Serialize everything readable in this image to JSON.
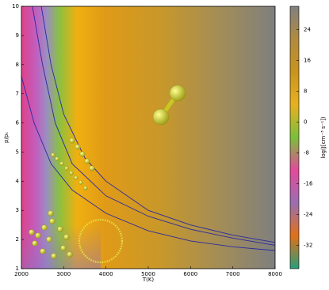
{
  "chart_data": {
    "type": "line",
    "xlabel": "T(K)",
    "ylabel": "p/pₛ",
    "colorbar_label": "log(J[cm⁻³ s⁻¹])",
    "xlim": [
      2000,
      8000
    ],
    "xticks": [
      2000,
      3000,
      4000,
      5000,
      6000,
      7000,
      8000
    ],
    "ylim": [
      1,
      10
    ],
    "yticks": [
      1,
      2,
      3,
      4,
      5,
      6,
      7,
      8,
      9,
      10
    ],
    "clim": [
      -38,
      30
    ],
    "cticks": [
      -32,
      -24,
      -16,
      -8,
      0,
      8,
      16,
      24
    ],
    "colormap": [
      "#2a9d7a",
      "#e0701a",
      "#9a6fb0",
      "#e24a9a",
      "#7bbf3a",
      "#e8b020",
      "#c8941e",
      "#b08a40",
      "#808080"
    ],
    "series": [
      {
        "color": "#2a2aa0",
        "x": [
          2470,
          2700,
          3000,
          3500,
          4000,
          5000,
          6000,
          7000,
          8000
        ],
        "y": [
          10,
          8,
          6.3,
          4.8,
          4,
          3,
          2.5,
          2.15,
          1.9
        ]
      },
      {
        "color": "#2a2aa0",
        "x": [
          2260,
          2500,
          2800,
          3200,
          4000,
          5000,
          6000,
          7000,
          8000
        ],
        "y": [
          10,
          8,
          6,
          4.6,
          3.5,
          2.8,
          2.35,
          2.05,
          1.8
        ]
      },
      {
        "color": "#2a2aa0",
        "x": [
          2000,
          2300,
          2700,
          3200,
          4000,
          5000,
          6000,
          7000,
          8000
        ],
        "y": [
          7.6,
          6,
          4.6,
          3.7,
          2.9,
          2.3,
          1.95,
          1.75,
          1.62
        ]
      }
    ]
  }
}
